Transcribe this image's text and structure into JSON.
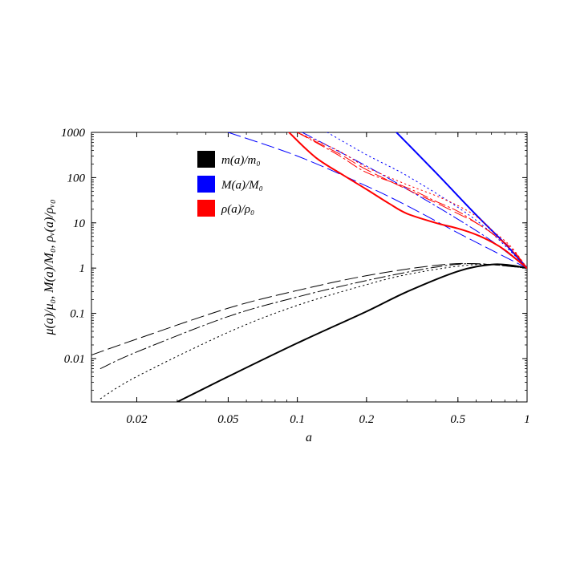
{
  "chart_data": {
    "type": "line",
    "xlabel": "a",
    "ylabel": "μ(a)/μ₀, M(a)/M₀, ρᵥ(a)/ρᵥ₀",
    "x_scale": "log",
    "y_scale": "log",
    "xlim": [
      0.0127,
      1
    ],
    "ylim": [
      0.0011,
      1000
    ],
    "x_ticks": [
      {
        "value": 0.02,
        "label": "0.02"
      },
      {
        "value": 0.05,
        "label": "0.05"
      },
      {
        "value": 0.1,
        "label": "0.1"
      },
      {
        "value": 0.2,
        "label": "0.2"
      },
      {
        "value": 0.5,
        "label": "0.5"
      },
      {
        "value": 1,
        "label": "1"
      }
    ],
    "y_ticks": [
      {
        "value": 0.01,
        "label": "0.01"
      },
      {
        "value": 0.1,
        "label": "0.1"
      },
      {
        "value": 1,
        "label": "1"
      },
      {
        "value": 10,
        "label": "10"
      },
      {
        "value": 100,
        "label": "100"
      },
      {
        "value": 1000,
        "label": "1000"
      }
    ],
    "legend_position": "top-left (inside)",
    "legend": [
      {
        "label": "m(a)/m₀",
        "color": "#000000"
      },
      {
        "label": "M(a)/M₀",
        "color": "#0000ff"
      },
      {
        "label": "ρ(a)/ρ₀",
        "color": "#ff0000"
      }
    ],
    "series": [
      {
        "color": "#000000",
        "style": "solid",
        "width": 2,
        "x": [
          0.03,
          0.05,
          0.1,
          0.2,
          0.3,
          0.5,
          0.7,
          0.85,
          1
        ],
        "y": [
          0.0011,
          0.004,
          0.022,
          0.11,
          0.3,
          0.85,
          1.2,
          1.15,
          1
        ]
      },
      {
        "color": "#000000",
        "style": "dotted",
        "width": 1,
        "x": [
          0.0139,
          0.02,
          0.05,
          0.1,
          0.2,
          0.3,
          0.5,
          0.7,
          1
        ],
        "y": [
          0.0013,
          0.004,
          0.038,
          0.15,
          0.43,
          0.72,
          1.1,
          1.2,
          1
        ]
      },
      {
        "color": "#000000",
        "style": "dashdot",
        "width": 1,
        "x": [
          0.0139,
          0.02,
          0.05,
          0.1,
          0.2,
          0.4,
          0.6,
          1
        ],
        "y": [
          0.006,
          0.014,
          0.085,
          0.23,
          0.53,
          1.05,
          1.25,
          1
        ]
      },
      {
        "color": "#000000",
        "style": "longdash",
        "width": 1,
        "x": [
          0.0127,
          0.02,
          0.05,
          0.1,
          0.2,
          0.4,
          0.6,
          1
        ],
        "y": [
          0.012,
          0.027,
          0.13,
          0.32,
          0.68,
          1.15,
          1.25,
          1
        ]
      },
      {
        "color": "#0000ff",
        "style": "solid",
        "width": 2,
        "x": [
          0.27,
          0.4,
          0.6,
          0.8,
          1
        ],
        "y": [
          1000,
          130,
          15,
          3.5,
          1
        ]
      },
      {
        "color": "#0000ff",
        "style": "dotted",
        "width": 1,
        "x": [
          0.135,
          0.2,
          0.3,
          0.5,
          0.7,
          1
        ],
        "y": [
          1000,
          320,
          110,
          22,
          6,
          1
        ]
      },
      {
        "color": "#0000ff",
        "style": "dashdot",
        "width": 1,
        "x": [
          0.105,
          0.2,
          0.3,
          0.5,
          0.7,
          1
        ],
        "y": [
          1000,
          180,
          56,
          12,
          4,
          1
        ]
      },
      {
        "color": "#0000ff",
        "style": "longdash",
        "width": 1,
        "x": [
          0.05,
          0.1,
          0.2,
          0.3,
          0.5,
          0.7,
          1
        ],
        "y": [
          1000,
          300,
          65,
          24,
          6,
          2.5,
          1
        ]
      },
      {
        "color": "#ff0000",
        "style": "solid",
        "width": 2,
        "x": [
          0.092,
          0.12,
          0.16,
          0.2,
          0.25,
          0.3,
          0.4,
          0.5,
          0.6,
          0.7,
          0.8,
          1
        ],
        "y": [
          1000,
          280,
          110,
          55,
          27,
          16,
          10,
          7.5,
          5.5,
          3.8,
          2.5,
          1
        ]
      },
      {
        "color": "#ff0000",
        "style": "dotted",
        "width": 1,
        "x": [
          0.1,
          0.15,
          0.2,
          0.3,
          0.4,
          0.5,
          0.6,
          0.7,
          0.85,
          1
        ],
        "y": [
          1000,
          400,
          170,
          70,
          40,
          24,
          14,
          7,
          3,
          1
        ]
      },
      {
        "color": "#ff0000",
        "style": "dashdot",
        "width": 1,
        "x": [
          0.1,
          0.15,
          0.2,
          0.3,
          0.4,
          0.5,
          0.6,
          0.7,
          0.85,
          1
        ],
        "y": [
          1000,
          320,
          130,
          60,
          30,
          18,
          10,
          6,
          2.8,
          1
        ]
      },
      {
        "color": "#ff0000",
        "style": "longdash",
        "width": 1,
        "x": [
          0.1,
          0.15,
          0.2,
          0.3,
          0.4,
          0.5,
          0.6,
          0.7,
          0.85,
          1
        ],
        "y": [
          1000,
          350,
          150,
          55,
          28,
          16,
          10,
          6,
          2.6,
          1
        ]
      }
    ]
  }
}
